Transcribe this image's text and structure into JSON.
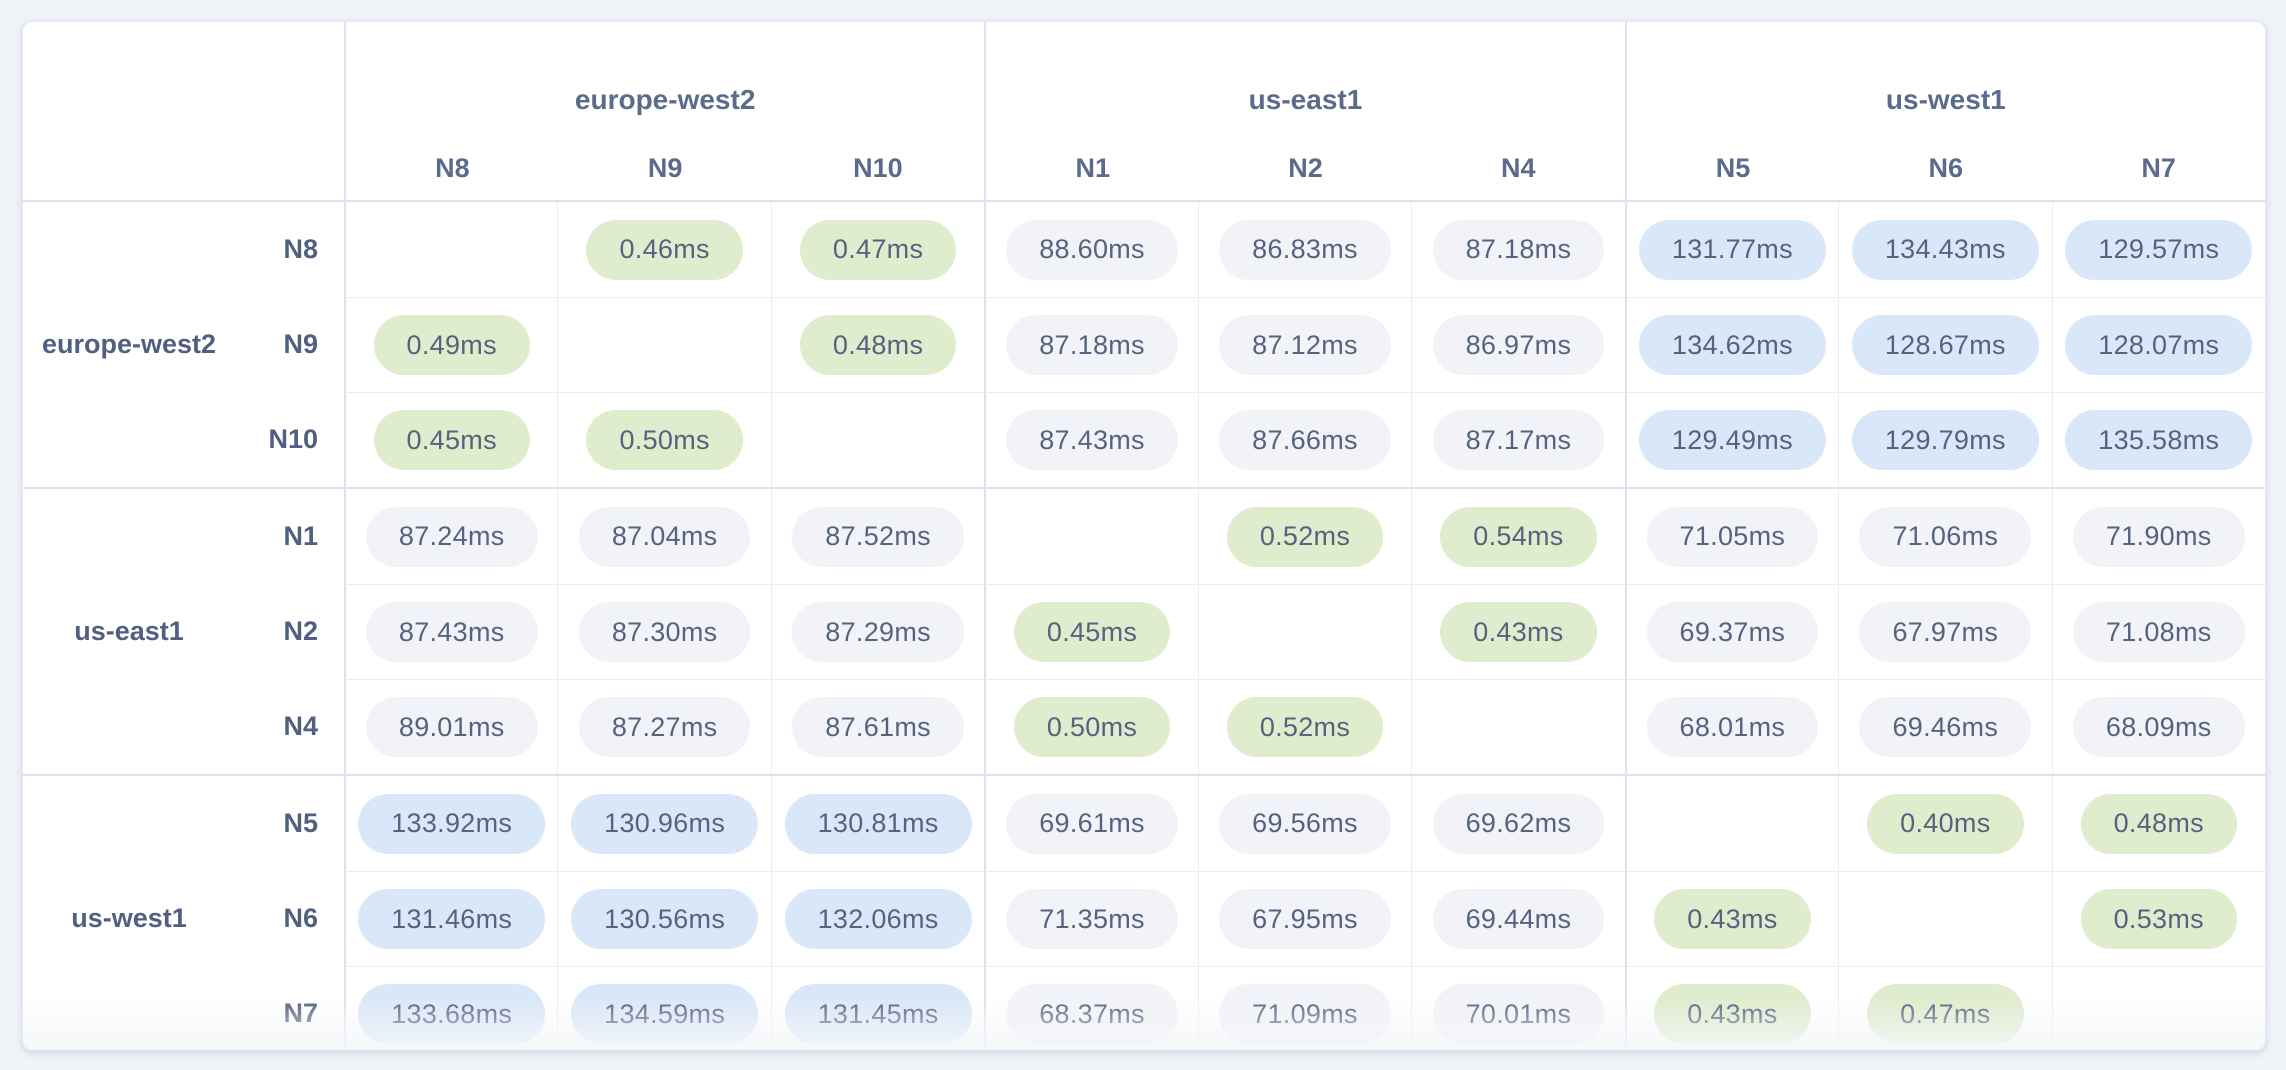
{
  "colors": {
    "tier_low": "#dfeccd",
    "tier_mid": "#f1f3f8",
    "tier_high": "#d9e8f9",
    "pill_text": "#55637f",
    "header_text": "#5b6b8c",
    "label_text": "#516080"
  },
  "tiers": {
    "low_below_ms": 1,
    "high_at_or_above_ms": 100
  },
  "unit_suffix": "ms",
  "chart_data": {
    "type": "heatmap",
    "title": "",
    "unit": "ms",
    "column_groups": [
      {
        "region": "europe-west2",
        "nodes": [
          "N8",
          "N9",
          "N10"
        ]
      },
      {
        "region": "us-east1",
        "nodes": [
          "N1",
          "N2",
          "N4"
        ]
      },
      {
        "region": "us-west1",
        "nodes": [
          "N5",
          "N6",
          "N7"
        ]
      }
    ],
    "columns": [
      "N8",
      "N9",
      "N10",
      "N1",
      "N2",
      "N4",
      "N5",
      "N6",
      "N7"
    ],
    "rows": [
      {
        "region": "europe-west2",
        "node": "N8",
        "values": [
          null,
          0.46,
          0.47,
          88.6,
          86.83,
          87.18,
          131.77,
          134.43,
          129.57
        ]
      },
      {
        "region": "europe-west2",
        "node": "N9",
        "values": [
          0.49,
          null,
          0.48,
          87.18,
          87.12,
          86.97,
          134.62,
          128.67,
          128.07
        ]
      },
      {
        "region": "europe-west2",
        "node": "N10",
        "values": [
          0.45,
          0.5,
          null,
          87.43,
          87.66,
          87.17,
          129.49,
          129.79,
          135.58
        ]
      },
      {
        "region": "us-east1",
        "node": "N1",
        "values": [
          87.24,
          87.04,
          87.52,
          null,
          0.52,
          0.54,
          71.05,
          71.06,
          71.9
        ]
      },
      {
        "region": "us-east1",
        "node": "N2",
        "values": [
          87.43,
          87.3,
          87.29,
          0.45,
          null,
          0.43,
          69.37,
          67.97,
          71.08
        ]
      },
      {
        "region": "us-east1",
        "node": "N4",
        "values": [
          89.01,
          87.27,
          87.61,
          0.5,
          0.52,
          null,
          68.01,
          69.46,
          68.09
        ]
      },
      {
        "region": "us-west1",
        "node": "N5",
        "values": [
          133.92,
          130.96,
          130.81,
          69.61,
          69.56,
          69.62,
          null,
          0.4,
          0.48
        ]
      },
      {
        "region": "us-west1",
        "node": "N6",
        "values": [
          131.46,
          130.56,
          132.06,
          71.35,
          67.95,
          69.44,
          0.43,
          null,
          0.53
        ]
      },
      {
        "region": "us-west1",
        "node": "N7",
        "values": [
          133.68,
          134.59,
          131.45,
          68.37,
          71.09,
          70.01,
          0.43,
          0.47,
          null
        ]
      }
    ]
  }
}
